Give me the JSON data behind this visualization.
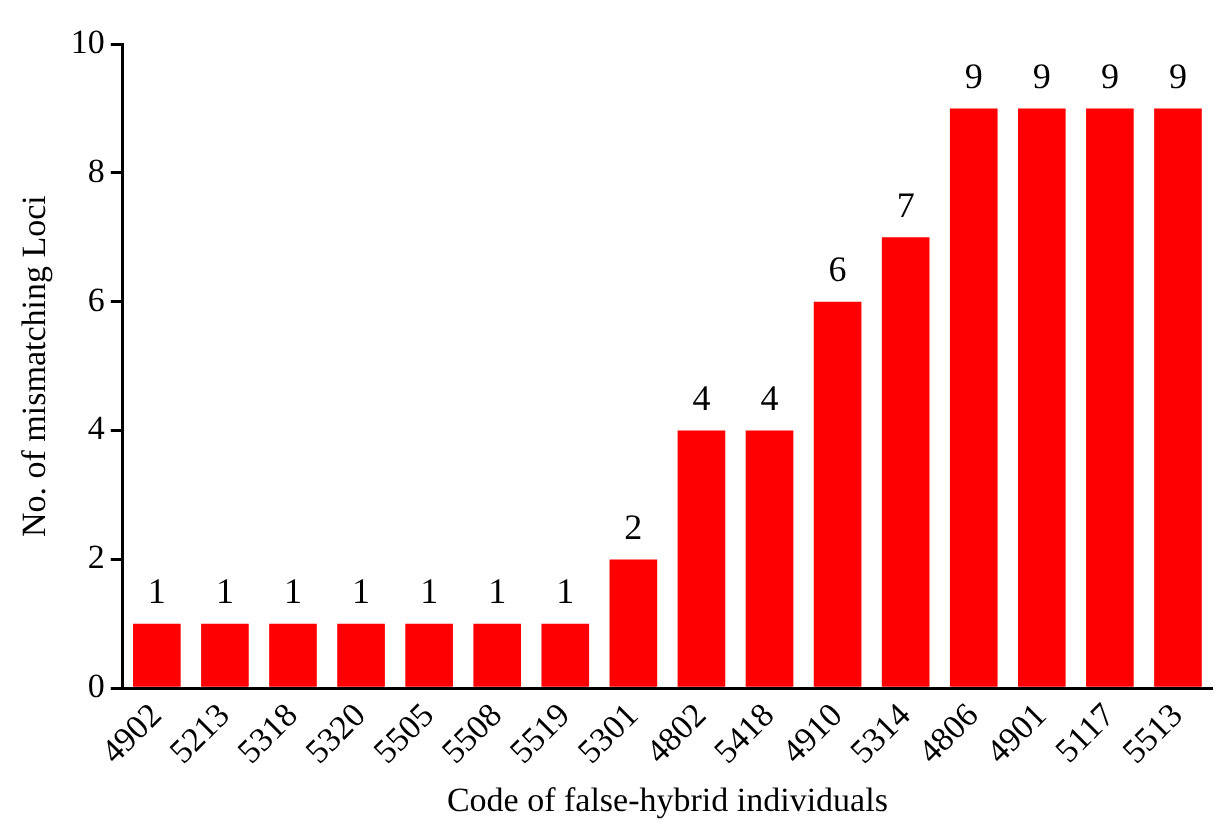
{
  "chart_data": {
    "type": "bar",
    "xlabel": "Code of false-hybrid individuals",
    "ylabel": "No. of mismatching Loci",
    "categories": [
      "4902",
      "5213",
      "5318",
      "5320",
      "5505",
      "5508",
      "5519",
      "5301",
      "4802",
      "5418",
      "4910",
      "5314",
      "4806",
      "4901",
      "5117",
      "5513"
    ],
    "values": [
      1,
      1,
      1,
      1,
      1,
      1,
      1,
      2,
      4,
      4,
      6,
      7,
      9,
      9,
      9,
      9
    ],
    "color": "#ff0000",
    "ylim": [
      0,
      10
    ],
    "yticks": [
      0,
      2,
      4,
      6,
      8,
      10
    ],
    "grid": false,
    "legend": false,
    "data_labels": true
  }
}
